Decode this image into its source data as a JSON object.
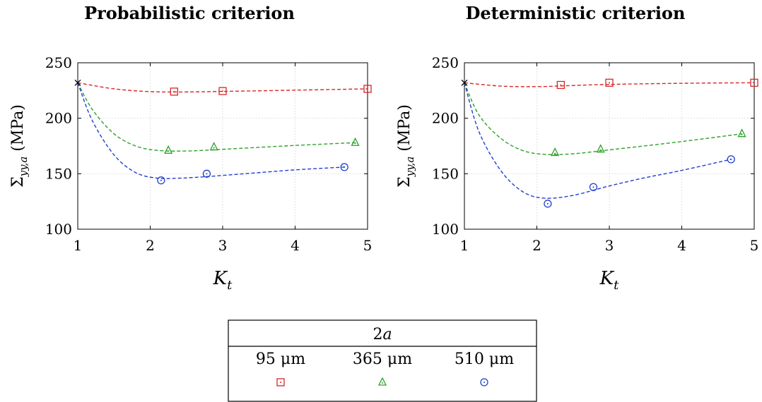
{
  "chart_data": [
    {
      "type": "scatter",
      "title": "Probabilistic criterion",
      "ylabel_base": "Σ",
      "ylabel_sub": "yy,a",
      "ylabel_unit": " (MPa)",
      "xlabel_base": "K",
      "xlabel_sub": "t",
      "xlim": [
        1,
        5
      ],
      "ylim": [
        100,
        250
      ],
      "xticks": [
        1,
        2,
        3,
        4,
        5
      ],
      "yticks": [
        100,
        150,
        200,
        250
      ],
      "grid": true,
      "origin_point": [
        1,
        232
      ],
      "series": [
        {
          "key": "s95",
          "marker": "square",
          "color": "#d62728",
          "points": [
            [
              2.33,
              224
            ],
            [
              3.0,
              224.5
            ],
            [
              5.0,
              226.5
            ]
          ],
          "fit": [
            [
              1,
              232
            ],
            [
              1.5,
              226.5
            ],
            [
              2.0,
              224
            ],
            [
              2.5,
              223.7
            ],
            [
              3.0,
              224.2
            ],
            [
              4.0,
              225.3
            ],
            [
              5.0,
              226.5
            ]
          ]
        },
        {
          "key": "s365",
          "marker": "triangle",
          "color": "#2ca02c",
          "points": [
            [
              2.25,
              171
            ],
            [
              2.88,
              174
            ],
            [
              4.83,
              178
            ]
          ],
          "fit": [
            [
              1,
              232
            ],
            [
              1.2,
              208
            ],
            [
              1.5,
              186
            ],
            [
              1.8,
              175
            ],
            [
              2.1,
              171
            ],
            [
              2.5,
              170.5
            ],
            [
              3.0,
              172
            ],
            [
              4.0,
              175.5
            ],
            [
              4.83,
              178
            ]
          ]
        },
        {
          "key": "s510",
          "marker": "circle",
          "color": "#1f3fd0",
          "points": [
            [
              2.15,
              144
            ],
            [
              2.78,
              150
            ],
            [
              4.68,
              156
            ]
          ],
          "fit": [
            [
              1,
              232
            ],
            [
              1.2,
              198
            ],
            [
              1.5,
              167
            ],
            [
              1.8,
              151
            ],
            [
              2.1,
              146
            ],
            [
              2.4,
              146
            ],
            [
              2.8,
              147.5
            ],
            [
              3.5,
              151
            ],
            [
              4.0,
              153.5
            ],
            [
              4.68,
              156
            ]
          ]
        }
      ]
    },
    {
      "type": "scatter",
      "title": "Deterministic criterion",
      "ylabel_base": "Σ",
      "ylabel_sub": "yy,a",
      "ylabel_unit": " (MPa)",
      "xlabel_base": "K",
      "xlabel_sub": "t",
      "xlim": [
        1,
        5
      ],
      "ylim": [
        100,
        250
      ],
      "xticks": [
        1,
        2,
        3,
        4,
        5
      ],
      "yticks": [
        100,
        150,
        200,
        250
      ],
      "grid": true,
      "origin_point": [
        1,
        232
      ],
      "series": [
        {
          "key": "s95",
          "marker": "square",
          "color": "#d62728",
          "points": [
            [
              2.33,
              230
            ],
            [
              3.0,
              232
            ],
            [
              5.0,
              232
            ]
          ],
          "fit": [
            [
              1,
              232
            ],
            [
              1.5,
              229
            ],
            [
              2.0,
              228.5
            ],
            [
              2.5,
              229.5
            ],
            [
              3.0,
              230.5
            ],
            [
              4.0,
              231.5
            ],
            [
              5.0,
              232
            ]
          ]
        },
        {
          "key": "s365",
          "marker": "triangle",
          "color": "#2ca02c",
          "points": [
            [
              2.25,
              169
            ],
            [
              2.88,
              172
            ],
            [
              4.83,
              186
            ]
          ],
          "fit": [
            [
              1,
              232
            ],
            [
              1.2,
              203
            ],
            [
              1.5,
              182
            ],
            [
              1.8,
              171
            ],
            [
              2.1,
              167.5
            ],
            [
              2.5,
              168
            ],
            [
              3.0,
              171.5
            ],
            [
              4.0,
              179
            ],
            [
              4.83,
              186
            ]
          ]
        },
        {
          "key": "s510",
          "marker": "circle",
          "color": "#1f3fd0",
          "points": [
            [
              2.15,
              123
            ],
            [
              2.78,
              138
            ],
            [
              4.68,
              163
            ]
          ],
          "fit": [
            [
              1,
              232
            ],
            [
              1.2,
              188
            ],
            [
              1.5,
              153
            ],
            [
              1.8,
              134
            ],
            [
              2.1,
              128
            ],
            [
              2.5,
              130.5
            ],
            [
              3.0,
              139
            ],
            [
              3.5,
              146.5
            ],
            [
              4.0,
              153
            ],
            [
              4.68,
              163
            ]
          ]
        }
      ]
    }
  ],
  "legend": {
    "title_base": "2",
    "title_var": "a",
    "entries": [
      {
        "key": "s95",
        "label": "95 μm"
      },
      {
        "key": "s365",
        "label": "365 μm"
      },
      {
        "key": "s510",
        "label": "510 μm"
      }
    ]
  }
}
